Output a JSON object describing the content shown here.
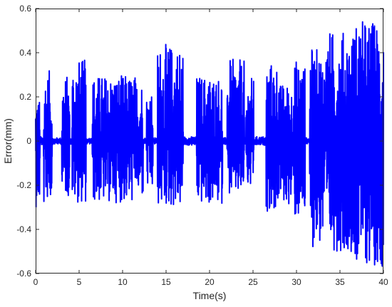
{
  "chart_data": {
    "type": "line",
    "title": "",
    "xlabel": "Time(s)",
    "ylabel": "Error(mm)",
    "xlim": [
      0,
      40
    ],
    "ylim": [
      -0.6,
      0.6
    ],
    "x_ticks": [
      0,
      5,
      10,
      15,
      20,
      25,
      30,
      35,
      40
    ],
    "y_ticks": [
      -0.6,
      -0.4,
      -0.2,
      0,
      0.2,
      0.4,
      0.6
    ],
    "x_tick_labels": [
      "0",
      "5",
      "10",
      "15",
      "20",
      "25",
      "30",
      "35",
      "40"
    ],
    "y_tick_labels": [
      "-0.6",
      "-0.4",
      "-0.2",
      "0",
      "0.2",
      "0.4",
      "0.6"
    ],
    "grid": false,
    "legend": "none",
    "colors": {
      "series": "#0000ff",
      "axis": "#262626",
      "background": "#ffffff"
    },
    "series": [
      {
        "description_points": "envelope of dense oscillation; bursts with near-zero gaps",
        "bursts": [
          {
            "x": [
              0.0,
              1.0
            ],
            "max": 0.2,
            "min": -0.3
          },
          {
            "x": [
              1.0,
              1.9
            ],
            "max": 0.32,
            "min": -0.27
          },
          {
            "x": [
              3.0,
              3.9
            ],
            "max": 0.3,
            "min": -0.25
          },
          {
            "x": [
              4.2,
              5.8
            ],
            "max": 0.37,
            "min": -0.28
          },
          {
            "x": [
              6.5,
              11.5
            ],
            "max": 0.3,
            "min": -0.28
          },
          {
            "x": [
              11.6,
              12.4
            ],
            "max": 0.28,
            "min": -0.26
          },
          {
            "x": [
              12.7,
              13.5
            ],
            "max": 0.23,
            "min": -0.23
          },
          {
            "x": [
              14.0,
              17.0
            ],
            "max": 0.44,
            "min": -0.3
          },
          {
            "x": [
              18.5,
              21.5
            ],
            "max": 0.3,
            "min": -0.29
          },
          {
            "x": [
              22.0,
              24.0
            ],
            "max": 0.37,
            "min": -0.25
          },
          {
            "x": [
              24.2,
              25.1
            ],
            "max": 0.29,
            "min": -0.22
          },
          {
            "x": [
              26.5,
              28.0
            ],
            "max": 0.36,
            "min": -0.32
          },
          {
            "x": [
              28.1,
              29.5
            ],
            "max": 0.26,
            "min": -0.29
          },
          {
            "x": [
              29.6,
              31.0
            ],
            "max": 0.37,
            "min": -0.36
          },
          {
            "x": [
              31.5,
              33.5
            ],
            "max": 0.42,
            "min": -0.48
          },
          {
            "x": [
              33.5,
              36.5
            ],
            "max": 0.5,
            "min": -0.5
          },
          {
            "x": [
              36.5,
              40.0
            ],
            "max": 0.55,
            "min": -0.57
          }
        ],
        "gaps": [
          {
            "x": [
              0.5,
              0.9
            ],
            "amp": 0.02
          },
          {
            "x": [
              1.9,
              3.0
            ],
            "amp": 0.015
          },
          {
            "x": [
              5.8,
              6.5
            ],
            "amp": 0.015
          },
          {
            "x": [
              12.4,
              12.7
            ],
            "amp": 0.015
          },
          {
            "x": [
              13.5,
              14.0
            ],
            "amp": 0.015
          },
          {
            "x": [
              17.0,
              18.5
            ],
            "amp": 0.02
          },
          {
            "x": [
              21.5,
              22.0
            ],
            "amp": 0.015
          },
          {
            "x": [
              25.1,
              26.5
            ],
            "amp": 0.02
          },
          {
            "x": [
              31.0,
              31.5
            ],
            "amp": 0.015
          }
        ]
      }
    ]
  }
}
